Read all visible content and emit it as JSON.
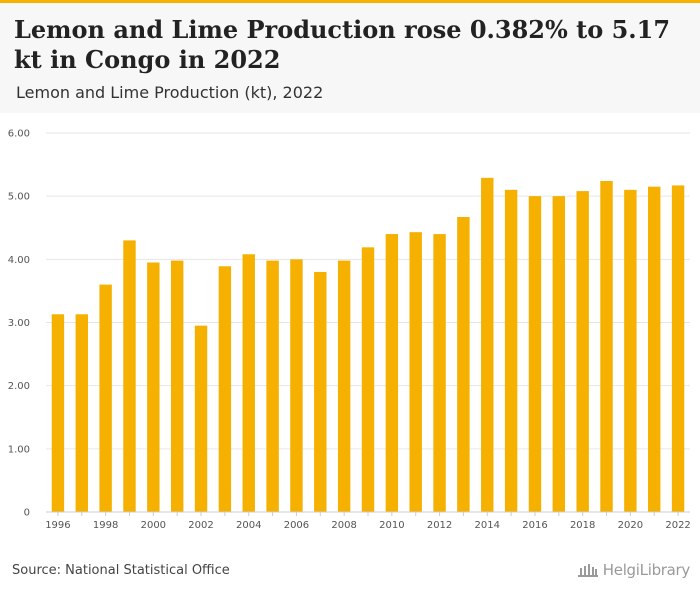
{
  "header": {
    "title": "Lemon and Lime Production rose 0.382% to 5.17 kt in Congo in 2022",
    "subtitle": "Lemon and Lime Production (kt), 2022"
  },
  "footer": {
    "source": "Source: National Statistical Office",
    "logo_text": "HelgiLibrary"
  },
  "colors": {
    "accent": "#f5b000",
    "bar": "#f5b000",
    "grid": "#e6e6e6",
    "axis_text": "#555555"
  },
  "chart_data": {
    "type": "bar",
    "categories": [
      "1996",
      "1997",
      "1998",
      "1999",
      "2000",
      "2001",
      "2002",
      "2003",
      "2004",
      "2005",
      "2006",
      "2007",
      "2008",
      "2009",
      "2010",
      "2011",
      "2012",
      "2013",
      "2014",
      "2015",
      "2016",
      "2017",
      "2018",
      "2019",
      "2020",
      "2021",
      "2022"
    ],
    "x_tick_labels": [
      "1996",
      "1998",
      "2000",
      "2002",
      "2004",
      "2006",
      "2008",
      "2010",
      "2012",
      "2014",
      "2016",
      "2018",
      "2020",
      "2022"
    ],
    "values": [
      3.13,
      3.13,
      3.6,
      4.3,
      3.95,
      3.98,
      2.95,
      3.89,
      4.08,
      3.98,
      4.0,
      3.8,
      3.98,
      4.19,
      4.4,
      4.43,
      4.4,
      4.67,
      5.29,
      5.1,
      5.0,
      5.0,
      5.08,
      5.24,
      5.1,
      5.15,
      5.17
    ],
    "y_ticks": [
      0,
      1,
      2,
      3,
      4,
      5,
      6
    ],
    "y_tick_labels": [
      "0",
      "1.00",
      "2.00",
      "3.00",
      "4.00",
      "5.00",
      "6.00"
    ],
    "ylim": [
      0,
      6
    ],
    "xlabel": "",
    "ylabel": "",
    "grid": true,
    "legend": "none"
  }
}
